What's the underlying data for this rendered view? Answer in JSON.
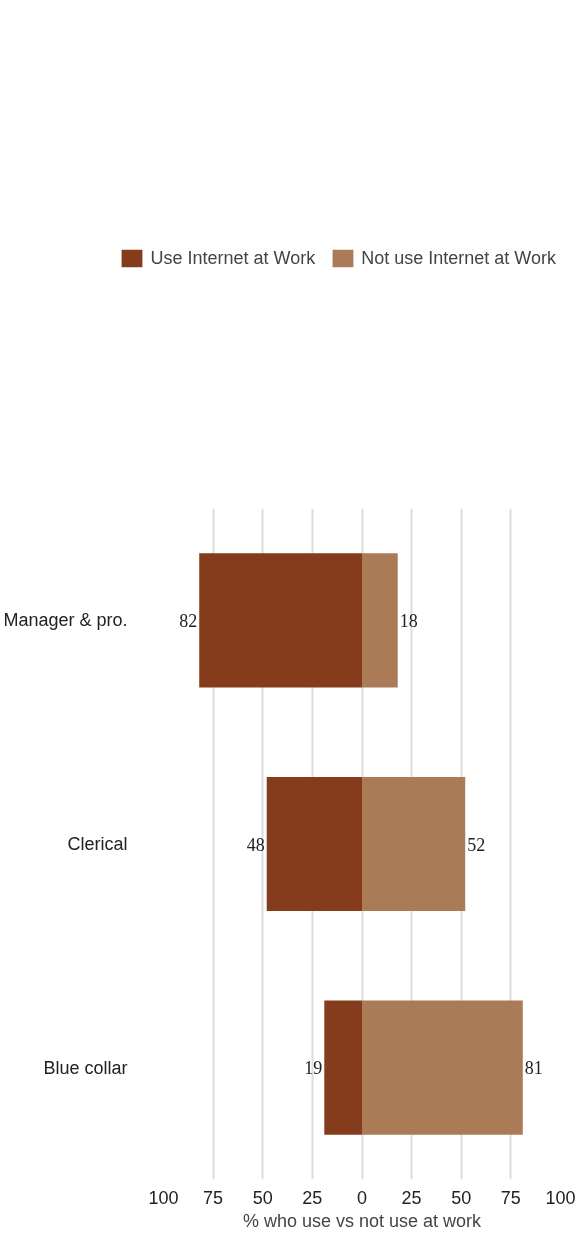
{
  "chart_data": {
    "type": "bar",
    "orientation": "horizontal",
    "categories": [
      "Manager & pro.",
      "Clerical",
      "Blue collar"
    ],
    "series": [
      {
        "name": "Use Internet at Work",
        "color": "#843c1c",
        "base": [
          -82,
          -48,
          -19
        ],
        "values": [
          82,
          48,
          19
        ],
        "value_labels": [
          "82",
          "48",
          "19"
        ]
      },
      {
        "name": "Not use Internet at Work",
        "color": "#ab7b58",
        "base": [
          0,
          0,
          0
        ],
        "values": [
          18,
          52,
          81
        ],
        "value_labels": [
          "18",
          "52",
          "81"
        ]
      }
    ],
    "xlim": [
      -100,
      100
    ],
    "xticks": [
      {
        "value": -100,
        "label": "100"
      },
      {
        "value": -75,
        "label": "75"
      },
      {
        "value": -50,
        "label": "50"
      },
      {
        "value": -25,
        "label": "25"
      },
      0,
      25,
      50,
      75,
      100
    ],
    "xlabel": "% who use vs not use at work",
    "grid": "x",
    "legend": "top"
  }
}
